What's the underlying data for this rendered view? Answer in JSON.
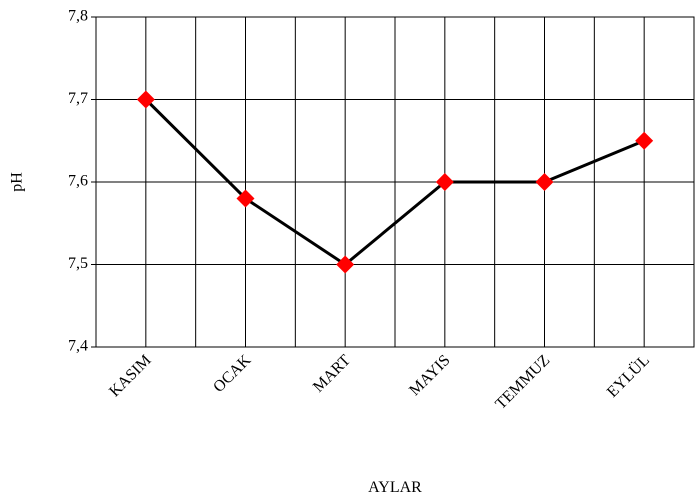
{
  "chart_data": {
    "type": "line",
    "x_label": "AYLAR",
    "y_label": "pH",
    "categories": [
      "KASIM",
      "OCAK",
      "MART",
      "MAYIS",
      "TEMMUZ",
      "EYLÜL"
    ],
    "series": [
      {
        "name": "pH",
        "color": "#000000",
        "marker_color": "#ff0000",
        "values": [
          7.7,
          7.58,
          7.5,
          7.6,
          7.6,
          7.65
        ]
      }
    ],
    "ylim": [
      7.4,
      7.8
    ],
    "yticks": [
      {
        "value": 7.4,
        "label": "7,4"
      },
      {
        "value": 7.5,
        "label": "7,5"
      },
      {
        "value": 7.6,
        "label": "7,6"
      },
      {
        "value": 7.7,
        "label": "7,7"
      },
      {
        "value": 7.8,
        "label": "7,8"
      }
    ],
    "grid": true
  }
}
